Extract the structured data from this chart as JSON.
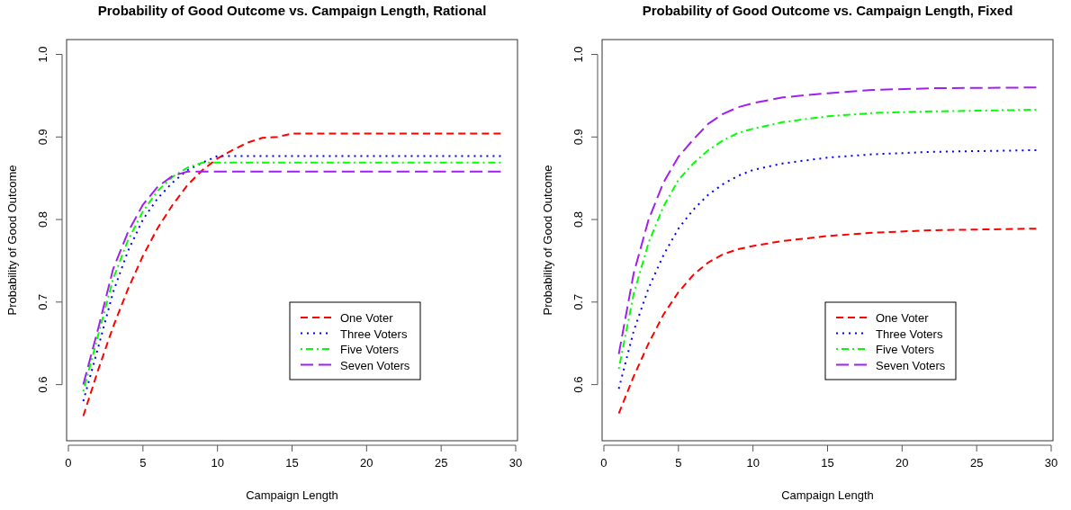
{
  "chart_data": [
    {
      "type": "line",
      "title": "Probability of Good Outcome vs. Campaign Length, Rational",
      "xlabel": "Campaign Length",
      "ylabel": "Probability of Good Outcome",
      "xlim": [
        -0.12,
        30.12
      ],
      "xticks": [
        0,
        5,
        10,
        15,
        20,
        25,
        30
      ],
      "ylim": [
        0.532,
        1.018
      ],
      "yticks": [
        0.6,
        0.7,
        0.8,
        0.9,
        {
          "value": 1,
          "label": "1.0"
        }
      ],
      "legend": "bottom right",
      "grid": false,
      "series": [
        {
          "name": "One Voter",
          "color": "#ff0000",
          "line_style": "dashed",
          "x": [
            1,
            2,
            3,
            4,
            5,
            6,
            7,
            8,
            9,
            10,
            11,
            12,
            13,
            14,
            15,
            29
          ],
          "values": [
            0.562,
            0.618,
            0.67,
            0.716,
            0.756,
            0.79,
            0.818,
            0.842,
            0.86,
            0.874,
            0.884,
            0.893,
            0.899,
            0.9,
            0.904,
            0.904
          ]
        },
        {
          "name": "Three Voters",
          "color": "#0000ff",
          "line_style": "dotted",
          "x": [
            1,
            2,
            3,
            4,
            5,
            6,
            7,
            8,
            9,
            10,
            29
          ],
          "values": [
            0.58,
            0.645,
            0.712,
            0.762,
            0.8,
            0.826,
            0.845,
            0.86,
            0.869,
            0.877,
            0.877
          ]
        },
        {
          "name": "Five Voters",
          "color": "#00ff00",
          "line_style": "dashdot",
          "x": [
            1,
            2,
            3,
            4,
            5,
            6,
            7,
            8,
            9,
            29
          ],
          "values": [
            0.592,
            0.66,
            0.728,
            0.775,
            0.81,
            0.835,
            0.852,
            0.863,
            0.869,
            0.869
          ]
        },
        {
          "name": "Seven Voters",
          "color": "#a020f0",
          "line_style": "longdash",
          "x": [
            1,
            2,
            3,
            4,
            5,
            6,
            7,
            8,
            29
          ],
          "values": [
            0.6,
            0.668,
            0.74,
            0.785,
            0.818,
            0.84,
            0.853,
            0.858,
            0.858
          ]
        }
      ]
    },
    {
      "type": "line",
      "title": "Probability of Good Outcome vs. Campaign Length, Fixed",
      "xlabel": "Campaign Length",
      "ylabel": "Probability of Good Outcome",
      "xlim": [
        -0.12,
        30.12
      ],
      "xticks": [
        0,
        5,
        10,
        15,
        20,
        25,
        30
      ],
      "ylim": [
        0.532,
        1.018
      ],
      "yticks": [
        0.6,
        0.7,
        0.8,
        0.9,
        {
          "value": 1,
          "label": "1.0"
        }
      ],
      "legend": "bottom right",
      "grid": false,
      "series": [
        {
          "name": "One Voter",
          "color": "#ff0000",
          "line_style": "dashed",
          "x": [
            1,
            2,
            3,
            4,
            5,
            6,
            7,
            8,
            9,
            10,
            12,
            15,
            18,
            22,
            29
          ],
          "values": [
            0.565,
            0.61,
            0.65,
            0.685,
            0.712,
            0.733,
            0.748,
            0.758,
            0.764,
            0.768,
            0.774,
            0.78,
            0.784,
            0.787,
            0.789
          ]
        },
        {
          "name": "Three Voters",
          "color": "#0000ff",
          "line_style": "dotted",
          "x": [
            1,
            2,
            3,
            4,
            5,
            6,
            7,
            8,
            9,
            10,
            12,
            15,
            18,
            22,
            29
          ],
          "values": [
            0.595,
            0.665,
            0.717,
            0.757,
            0.789,
            0.812,
            0.83,
            0.843,
            0.853,
            0.86,
            0.868,
            0.875,
            0.879,
            0.882,
            0.884
          ]
        },
        {
          "name": "Five Voters",
          "color": "#00ff00",
          "line_style": "dashdot",
          "x": [
            1,
            2,
            3,
            4,
            5,
            6,
            7,
            8,
            9,
            10,
            12,
            15,
            18,
            22,
            29
          ],
          "values": [
            0.619,
            0.71,
            0.772,
            0.816,
            0.848,
            0.868,
            0.884,
            0.896,
            0.905,
            0.91,
            0.918,
            0.925,
            0.929,
            0.931,
            0.933
          ]
        },
        {
          "name": "Seven Voters",
          "color": "#a020f0",
          "line_style": "longdash",
          "x": [
            1,
            2,
            3,
            4,
            5,
            6,
            7,
            8,
            9,
            10,
            12,
            15,
            18,
            22,
            29
          ],
          "values": [
            0.637,
            0.735,
            0.8,
            0.845,
            0.876,
            0.897,
            0.916,
            0.928,
            0.936,
            0.941,
            0.948,
            0.953,
            0.957,
            0.959,
            0.96
          ]
        }
      ]
    }
  ]
}
